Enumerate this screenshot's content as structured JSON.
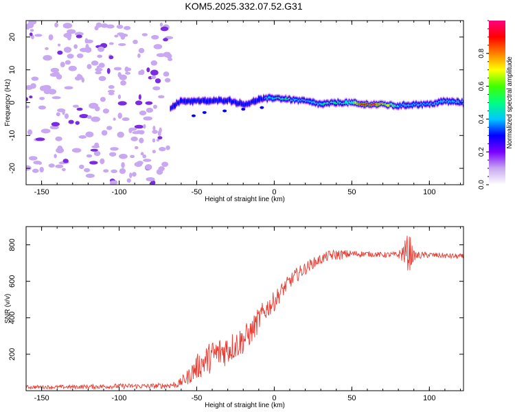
{
  "title": "KOM5.2025.332.07.52.G31",
  "colors": {
    "snr_line": "#e83a30",
    "axis": "#000000",
    "scatter_noise": "#c8a8f0",
    "scatter_noise_dark": "#7a2ce0"
  },
  "chart_data": [
    {
      "type": "heatmap",
      "name": "spectrogram",
      "xlabel": "Height of straight line (km)",
      "ylabel": "Frequency (Hz)",
      "xlim": [
        -160,
        122
      ],
      "ylim": [
        -25,
        25
      ],
      "xticks": [
        -150,
        -100,
        -50,
        0,
        50,
        100
      ],
      "yticks": [
        -20,
        -10,
        0,
        10,
        20
      ],
      "colorbar": {
        "label": "Normalized spectral amplitude",
        "range": [
          0,
          1
        ],
        "ticks": [
          0.0,
          0.2,
          0.4,
          0.6,
          0.8
        ],
        "tick_labels": [
          "0.0",
          "0.2",
          "0.4",
          "0.6",
          "0.8"
        ],
        "colormap": [
          "#ffffff",
          "#c8a8f0",
          "#7a00ff",
          "#0000ff",
          "#00c8ff",
          "#00ff80",
          "#40ff00",
          "#ffff00",
          "#ff8000",
          "#ff0000",
          "#ff0080"
        ]
      },
      "noise_region_x": [
        -160,
        -67
      ],
      "signal_ridge": {
        "x": [
          -67,
          -60,
          -50,
          -40,
          -30,
          -20,
          -15,
          -10,
          0,
          10,
          20,
          30,
          40,
          50,
          55,
          60,
          70,
          80,
          90,
          100,
          110,
          122
        ],
        "freq": [
          -1.5,
          0.5,
          0.5,
          0.5,
          0.8,
          -0.5,
          0.0,
          1.0,
          1.5,
          1.0,
          0.5,
          -0.5,
          0.0,
          0.0,
          -0.5,
          -0.5,
          -0.5,
          -1.0,
          -0.5,
          -0.5,
          0.5,
          0.0
        ],
        "amplitude": [
          0.25,
          0.3,
          0.35,
          0.3,
          0.3,
          0.25,
          0.3,
          0.3,
          0.45,
          0.45,
          0.4,
          0.45,
          0.45,
          0.55,
          0.9,
          0.9,
          0.8,
          0.45,
          0.4,
          0.4,
          0.45,
          0.4
        ]
      }
    },
    {
      "type": "line",
      "name": "snr",
      "xlabel": "Height of straight line (km)",
      "ylabel": "SNR (v/v)",
      "xlim": [
        -160,
        122
      ],
      "ylim": [
        0,
        900
      ],
      "xticks": [
        -150,
        -100,
        -50,
        0,
        50,
        100
      ],
      "yticks": [
        200,
        400,
        600,
        800
      ],
      "x": [
        -160,
        -140,
        -120,
        -100,
        -80,
        -70,
        -62,
        -55,
        -50,
        -45,
        -40,
        -35,
        -30,
        -25,
        -20,
        -15,
        -10,
        -5,
        0,
        5,
        10,
        15,
        20,
        25,
        30,
        35,
        40,
        50,
        60,
        70,
        80,
        85,
        87,
        90,
        100,
        110,
        122
      ],
      "y": [
        20,
        20,
        22,
        25,
        25,
        28,
        35,
        80,
        130,
        160,
        190,
        210,
        230,
        250,
        280,
        320,
        390,
        450,
        490,
        550,
        600,
        640,
        670,
        700,
        720,
        740,
        745,
        750,
        750,
        745,
        745,
        760,
        760,
        740,
        745,
        740,
        735
      ],
      "noise": [
        10,
        10,
        12,
        14,
        14,
        16,
        20,
        45,
        70,
        80,
        90,
        90,
        90,
        80,
        80,
        70,
        70,
        60,
        55,
        45,
        40,
        40,
        35,
        30,
        28,
        28,
        30,
        20,
        15,
        15,
        18,
        80,
        120,
        25,
        15,
        15,
        15
      ]
    }
  ]
}
